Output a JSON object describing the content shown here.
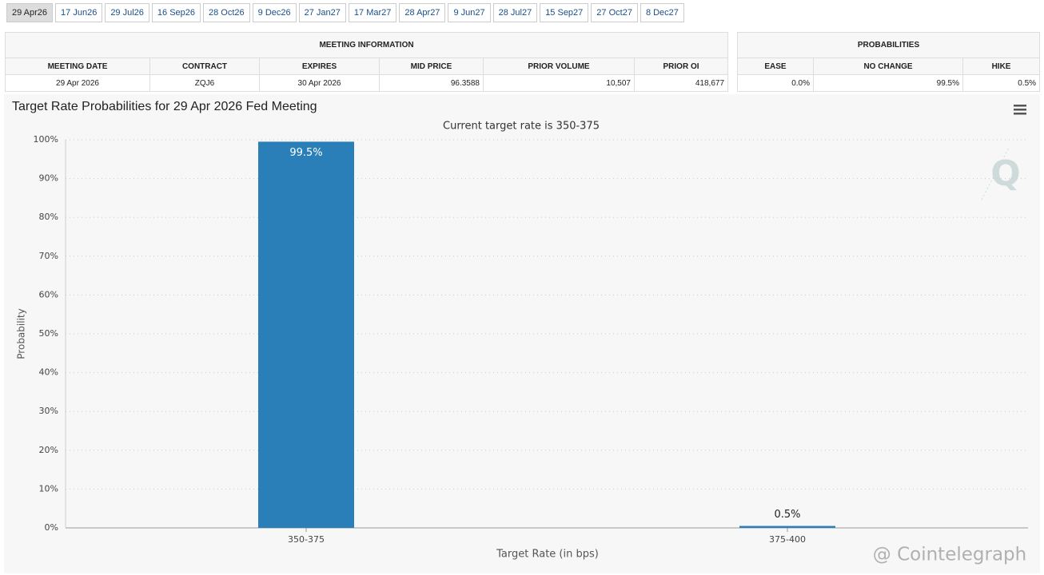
{
  "tabs": [
    "29 Apr26",
    "17 Jun26",
    "29 Jul26",
    "16 Sep26",
    "28 Oct26",
    "9 Dec26",
    "27 Jan27",
    "17 Mar27",
    "28 Apr27",
    "9 Jun27",
    "28 Jul27",
    "15 Sep27",
    "27 Oct27",
    "8 Dec27"
  ],
  "meeting_table": {
    "title": "MEETING INFORMATION",
    "headers": [
      "MEETING DATE",
      "CONTRACT",
      "EXPIRES",
      "MID PRICE",
      "PRIOR VOLUME",
      "PRIOR OI"
    ],
    "rows": [
      [
        "29 Apr 2026",
        "ZQJ6",
        "30 Apr 2026",
        "96.3588",
        "10,507",
        "418,677"
      ]
    ]
  },
  "probabilities_table": {
    "title": "PROBABILITIES",
    "headers": [
      "EASE",
      "NO CHANGE",
      "HIKE"
    ],
    "rows": [
      [
        "0.0%",
        "99.5%",
        "0.5%"
      ]
    ]
  },
  "chart_data": {
    "type": "bar",
    "title": "Target Rate Probabilities for 29 Apr 2026 Fed Meeting",
    "subtitle": "Current target rate is 350-375",
    "x_label": "Target Rate (in bps)",
    "y_label": "Probability",
    "categories": [
      "350-375",
      "375-400"
    ],
    "values": [
      99.5,
      0.5
    ],
    "value_labels": [
      "99.5%",
      "0.5%"
    ],
    "color": "#2a7fb8",
    "ylim": [
      0,
      100
    ],
    "yticks": [
      {
        "value": 0,
        "label": "0%"
      },
      {
        "value": 10,
        "label": "10%"
      },
      {
        "value": 20,
        "label": "20%"
      },
      {
        "value": 30,
        "label": "30%"
      },
      {
        "value": 40,
        "label": "40%"
      },
      {
        "value": 50,
        "label": "50%"
      },
      {
        "value": 60,
        "label": "60%"
      },
      {
        "value": 70,
        "label": "70%"
      },
      {
        "value": 80,
        "label": "80%"
      },
      {
        "value": 90,
        "label": "90%"
      },
      {
        "value": 100,
        "label": "100%"
      }
    ],
    "grid": true
  },
  "watermark": "@ Cointelegraph"
}
